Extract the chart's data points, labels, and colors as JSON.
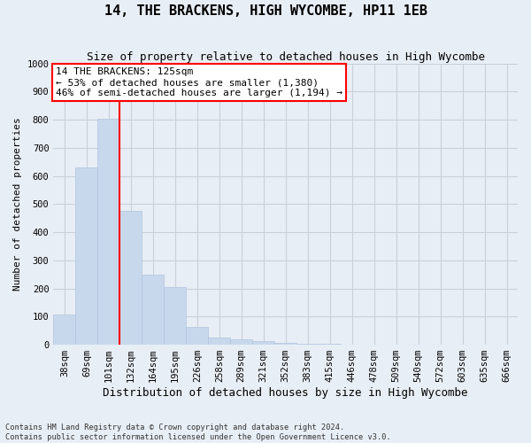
{
  "title": "14, THE BRACKENS, HIGH WYCOMBE, HP11 1EB",
  "subtitle": "Size of property relative to detached houses in High Wycombe",
  "xlabel": "Distribution of detached houses by size in High Wycombe",
  "ylabel": "Number of detached properties",
  "bar_color": "#c8d8ec",
  "bar_edge_color": "#b0c4de",
  "categories": [
    "38sqm",
    "69sqm",
    "101sqm",
    "132sqm",
    "164sqm",
    "195sqm",
    "226sqm",
    "258sqm",
    "289sqm",
    "321sqm",
    "352sqm",
    "383sqm",
    "415sqm",
    "446sqm",
    "478sqm",
    "509sqm",
    "540sqm",
    "572sqm",
    "603sqm",
    "635sqm",
    "666sqm"
  ],
  "values": [
    108,
    630,
    805,
    477,
    250,
    205,
    62,
    25,
    18,
    12,
    8,
    3,
    2,
    0,
    0,
    0,
    0,
    0,
    0,
    0,
    0
  ],
  "ylim": [
    0,
    1000
  ],
  "yticks": [
    0,
    100,
    200,
    300,
    400,
    500,
    600,
    700,
    800,
    900,
    1000
  ],
  "red_line_bin_index": 3,
  "annotation_title": "14 THE BRACKENS: 125sqm",
  "annotation_line1": "← 53% of detached houses are smaller (1,380)",
  "annotation_line2": "46% of semi-detached houses are larger (1,194) →",
  "footnote1": "Contains HM Land Registry data © Crown copyright and database right 2024.",
  "footnote2": "Contains public sector information licensed under the Open Government Licence v3.0.",
  "fig_background": "#e8eef5",
  "plot_background": "#e8eef5",
  "grid_color": "#c8d0da",
  "title_fontsize": 11,
  "subtitle_fontsize": 9,
  "tick_fontsize": 7.5,
  "ylabel_fontsize": 8,
  "xlabel_fontsize": 9,
  "ann_fontsize": 8
}
